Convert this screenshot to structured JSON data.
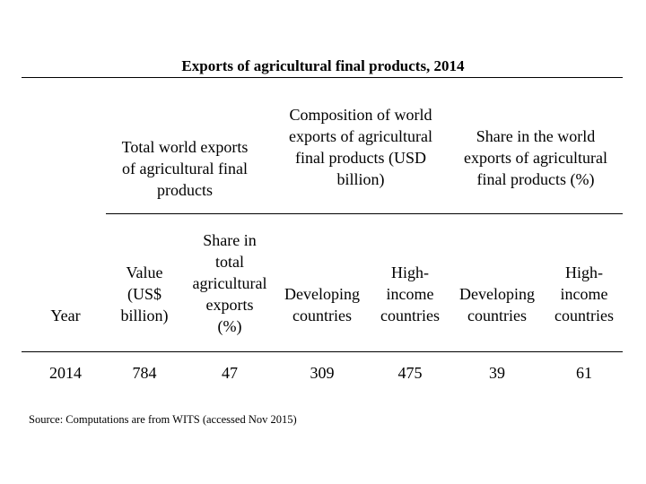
{
  "title": "Exports of agricultural final products,  2014",
  "header_groups": {
    "total": [
      "Total world exports",
      "of agricultural final",
      "products"
    ],
    "composition": [
      "Composition of world",
      "exports of agricultural",
      "final products (USD",
      "billion)"
    ],
    "share": [
      "Share in the world",
      "exports of agricultural",
      "final products (%)"
    ]
  },
  "columns": {
    "year": [
      "Year"
    ],
    "value": [
      "Value",
      "(US$",
      "billion)"
    ],
    "share_total": [
      "Share in",
      "total",
      "agricultural",
      "exports",
      "(%)"
    ],
    "comp_dev": [
      "Developing",
      "countries"
    ],
    "comp_high": [
      "High-",
      "income",
      "countries"
    ],
    "share_dev": [
      "Developing",
      "countries"
    ],
    "share_high": [
      "High-",
      "income",
      "countries"
    ]
  },
  "row": {
    "year": "2014",
    "value": "784",
    "share_total": "47",
    "comp_dev": "309",
    "comp_high": "475",
    "share_dev": "39",
    "share_high": "61"
  },
  "source": "Source: Computations are from WITS (accessed Nov 2015)"
}
